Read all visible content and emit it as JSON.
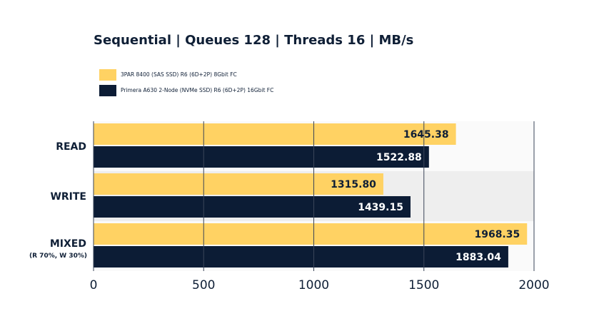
{
  "chart_data": {
    "type": "bar",
    "orientation": "horizontal",
    "title": "Sequential | Queues 128 | Threads 16 | MB/s",
    "categories": [
      {
        "label": "READ",
        "sublabel": ""
      },
      {
        "label": "WRITE",
        "sublabel": ""
      },
      {
        "label": "MIXED",
        "sublabel": "(R 70%, W 30%)"
      }
    ],
    "series": [
      {
        "name": "3PAR 8400 (SAS SSD) R6 (6D+2P) 8Gbit FC",
        "color": "#ffd263",
        "label_color": "#0f1f36",
        "values": [
          1645.38,
          1315.8,
          1968.35
        ],
        "value_labels": [
          "1645.38",
          "1315.80",
          "1968.35"
        ]
      },
      {
        "name": "Primera A630 2-Node (NVMe SSD) R6 (6D+2P) 16Gbit FC",
        "color": "#0c1c35",
        "label_color": "#ffffff",
        "values": [
          1522.88,
          1439.15,
          1883.04
        ],
        "value_labels": [
          "1522.88",
          "1439.15",
          "1883.04"
        ]
      }
    ],
    "xlim": [
      0,
      2000
    ],
    "xticks": [
      "0",
      "500",
      "1000",
      "1500",
      "2000"
    ],
    "grid": true,
    "legend_position": "top-left",
    "band_colors": [
      "#fafafa",
      "#eeeeee",
      "#fafafa"
    ]
  }
}
